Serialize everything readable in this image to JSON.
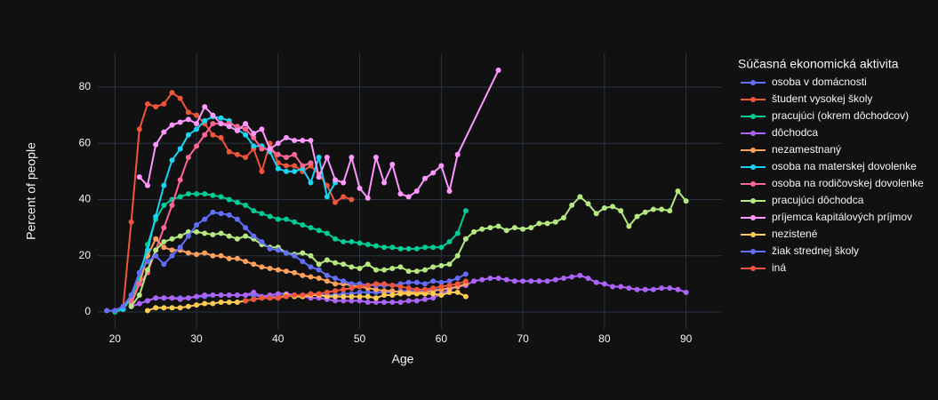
{
  "chart_data": {
    "type": "line",
    "x_label": "Age",
    "y_label": "Percent of people",
    "legend_title": "Súčasná ekonomická aktivita",
    "xlim": [
      17.9,
      94.4
    ],
    "ylim": [
      -6,
      92
    ],
    "xticks": [
      20,
      30,
      40,
      50,
      60,
      70,
      80,
      90
    ],
    "yticks": [
      0,
      20,
      40,
      60,
      80
    ],
    "grid": true,
    "legend_position": "right",
    "series": [
      {
        "name": "osoba v domácnosti",
        "color": "#636efa",
        "x": [
          22,
          23,
          24,
          25,
          26,
          27,
          28,
          29,
          30,
          31,
          32,
          33,
          34,
          35,
          36,
          37,
          38,
          39,
          40,
          41,
          42,
          43,
          44,
          45,
          46,
          47,
          48,
          49,
          50,
          51,
          52,
          53,
          54,
          55,
          56,
          57,
          58,
          59,
          60,
          61,
          62,
          63
        ],
        "values": [
          2,
          3,
          4,
          5,
          5,
          5,
          5,
          5,
          5.5,
          5.5,
          6,
          6,
          6,
          6,
          6,
          6,
          5.5,
          5.5,
          5.5,
          5.5,
          6,
          6,
          6,
          6,
          6,
          6,
          6.5,
          6.5,
          7,
          7,
          7,
          7,
          7,
          7.5,
          7.5,
          7.5,
          7.5,
          8,
          8,
          8.5,
          9,
          9.5
        ]
      },
      {
        "name": "študent vysokej školy",
        "color": "#EF553B",
        "x": [
          19,
          20,
          21,
          22,
          23,
          24,
          25,
          26,
          27,
          28,
          29,
          30,
          31,
          32,
          33,
          34,
          35,
          36,
          37,
          38,
          39,
          40,
          41,
          42,
          43,
          44,
          45,
          46,
          47,
          48,
          49
        ],
        "values": [
          0.5,
          0.5,
          1.5,
          32,
          65,
          74,
          73,
          74,
          78,
          76,
          71,
          70,
          67,
          63,
          62,
          57,
          56,
          55,
          58,
          50,
          60,
          53,
          52,
          52,
          50,
          52,
          49,
          45,
          39,
          41,
          40
        ]
      },
      {
        "name": "pracujúci (okrem dôchodcov)",
        "color": "#00cc96",
        "x": [
          20,
          21,
          22,
          23,
          24,
          25,
          26,
          27,
          28,
          29,
          30,
          31,
          32,
          33,
          34,
          35,
          36,
          37,
          38,
          39,
          40,
          41,
          42,
          43,
          44,
          45,
          46,
          47,
          48,
          49,
          50,
          51,
          52,
          53,
          54,
          55,
          56,
          57,
          58,
          59,
          60,
          61,
          62,
          63
        ],
        "values": [
          0,
          1,
          5,
          12,
          24,
          33,
          38,
          40,
          41,
          42,
          42,
          42,
          41.5,
          41,
          40,
          39,
          38,
          36,
          35,
          34,
          33,
          33,
          32,
          31,
          30,
          29,
          28,
          26,
          25,
          25,
          24.5,
          24,
          23.5,
          23,
          23,
          22.5,
          22.5,
          22.5,
          23,
          23,
          23,
          25,
          28,
          36
        ]
      },
      {
        "name": "dôchodca",
        "color": "#ab63fa",
        "x": [
          22,
          23,
          24,
          25,
          26,
          27,
          28,
          29,
          30,
          31,
          32,
          33,
          34,
          35,
          36,
          37,
          38,
          39,
          40,
          41,
          42,
          43,
          44,
          45,
          46,
          47,
          48,
          49,
          50,
          51,
          52,
          53,
          54,
          55,
          56,
          57,
          58,
          59,
          60,
          61,
          62,
          63,
          64,
          65,
          66,
          67,
          68,
          69,
          70,
          71,
          72,
          73,
          74,
          75,
          76,
          77,
          78,
          79,
          80,
          81,
          82,
          83,
          84,
          85,
          86,
          87,
          88,
          89,
          90
        ],
        "values": [
          2,
          3,
          4,
          5,
          5,
          5,
          4.5,
          5,
          5.5,
          6,
          6,
          6,
          6,
          6,
          6,
          7,
          5.5,
          6,
          6.5,
          6.5,
          6,
          5.5,
          5,
          5,
          4.5,
          4,
          4,
          4,
          4,
          3.5,
          3.5,
          3.5,
          3.5,
          3.5,
          4,
          4,
          4.5,
          5,
          6.5,
          8,
          9,
          9.5,
          11,
          11.5,
          12,
          12,
          11.5,
          11,
          11,
          11,
          11,
          11,
          11.5,
          12,
          12.5,
          13,
          12,
          10.5,
          10,
          9,
          9,
          8.5,
          8,
          8,
          8,
          8.5,
          8.5,
          8,
          7
        ]
      },
      {
        "name": "nezamestnaný",
        "color": "#FFA15A",
        "x": [
          22,
          23,
          24,
          25,
          26,
          27,
          28,
          29,
          30,
          31,
          32,
          33,
          34,
          35,
          36,
          37,
          38,
          39,
          40,
          41,
          42,
          43,
          44,
          45,
          46,
          47,
          48,
          49,
          50,
          51,
          52,
          53,
          54,
          55,
          56,
          57,
          58,
          59,
          60,
          61,
          62,
          63
        ],
        "values": [
          3,
          10,
          20,
          26,
          23,
          22,
          22,
          21,
          20.5,
          21,
          20,
          20,
          19,
          19,
          18,
          17,
          16,
          15.5,
          15,
          14.5,
          14,
          13,
          12.5,
          12,
          11,
          10,
          10,
          9.5,
          9,
          8.5,
          8,
          7.5,
          7.5,
          7,
          7,
          7,
          7,
          7.5,
          8,
          8.5,
          9,
          10
        ]
      },
      {
        "name": "osoba na materskej dovolenke",
        "color": "#19d3f3",
        "x": [
          21,
          22,
          23,
          24,
          25,
          26,
          27,
          28,
          29,
          30,
          31,
          32,
          33,
          34,
          35,
          36,
          37,
          38,
          39,
          40,
          41,
          42,
          43,
          44,
          45,
          46,
          47
        ],
        "values": [
          1,
          6,
          14,
          22,
          34,
          45,
          54,
          58,
          63,
          65,
          68,
          69.5,
          69,
          68,
          65,
          63,
          59,
          59,
          57,
          51,
          50,
          50,
          51,
          46,
          55,
          41,
          46
        ]
      },
      {
        "name": "osoba na rodičovskej dovolenke",
        "color": "#FF6692",
        "x": [
          22,
          23,
          24,
          25,
          26,
          27,
          28,
          29,
          30,
          31,
          32,
          33,
          34,
          35,
          36,
          37,
          38,
          39,
          40,
          41,
          42,
          43,
          44
        ],
        "values": [
          4,
          10,
          14,
          22,
          30,
          38,
          47,
          55,
          59,
          63,
          67,
          67,
          67,
          66,
          65,
          62,
          58,
          58,
          56,
          55,
          56,
          52,
          53
        ]
      },
      {
        "name": "pracujúci dôchodca",
        "color": "#B6E880",
        "x": [
          22,
          23,
          24,
          25,
          26,
          27,
          28,
          29,
          30,
          31,
          32,
          33,
          34,
          35,
          36,
          37,
          38,
          39,
          40,
          41,
          42,
          43,
          44,
          45,
          46,
          47,
          48,
          49,
          50,
          51,
          52,
          53,
          54,
          55,
          56,
          57,
          58,
          59,
          60,
          61,
          62,
          63,
          64,
          65,
          66,
          67,
          68,
          69,
          70,
          71,
          72,
          73,
          74,
          75,
          76,
          77,
          78,
          79,
          80,
          81,
          82,
          83,
          84,
          85,
          86,
          87,
          88,
          89,
          90
        ],
        "values": [
          2,
          6,
          15,
          22,
          25,
          26,
          27,
          28.5,
          28.5,
          28,
          27.5,
          28,
          27,
          26,
          27,
          26,
          24,
          23,
          23,
          21,
          20.5,
          21,
          20,
          17,
          18.5,
          17.5,
          17,
          16,
          15.5,
          17,
          15,
          15,
          15.5,
          16,
          14.5,
          14.5,
          15,
          16,
          16.5,
          17,
          20,
          26,
          28.5,
          29.5,
          30,
          30.5,
          29,
          30,
          29.5,
          30,
          31.5,
          31.5,
          32,
          33.5,
          38,
          41,
          38.5,
          35,
          37,
          37.5,
          36,
          30.5,
          34,
          35.5,
          36.5,
          36.5,
          36,
          43,
          39.5
        ]
      },
      {
        "name": "príjemca kapitálových príjmov",
        "color": "#FF97FF",
        "x": [
          23,
          24,
          25,
          26,
          27,
          28,
          29,
          30,
          31,
          32,
          33,
          34,
          35,
          36,
          37,
          38,
          39,
          40,
          41,
          42,
          43,
          44,
          45,
          46,
          47,
          48,
          49,
          50,
          51,
          52,
          53,
          54,
          55,
          56,
          57,
          58,
          59,
          60,
          61,
          62,
          67
        ],
        "values": [
          48,
          45,
          59.5,
          64,
          66.5,
          67.5,
          68.5,
          67,
          73,
          70,
          67,
          66,
          64.5,
          67,
          63.5,
          65,
          58,
          60,
          62,
          61,
          61,
          61,
          48,
          55,
          47,
          46,
          55,
          44,
          40.5,
          55,
          46,
          52.5,
          42,
          41,
          43,
          47.5,
          49.5,
          52,
          43,
          56,
          86
        ]
      },
      {
        "name": "nezistené",
        "color": "#FECB52",
        "x": [
          24,
          25,
          26,
          27,
          28,
          29,
          30,
          31,
          32,
          33,
          34,
          35,
          36,
          37,
          38,
          39,
          40,
          41,
          42,
          43,
          44,
          45,
          46,
          47,
          48,
          49,
          50,
          51,
          52,
          53,
          54,
          55,
          56,
          57,
          58,
          59,
          60,
          61,
          62,
          63
        ],
        "values": [
          0.5,
          1.5,
          1.5,
          1.5,
          1.5,
          2,
          2.5,
          3,
          3,
          3.5,
          3.5,
          3.5,
          4,
          4.5,
          5,
          5,
          5,
          6,
          5.5,
          5.5,
          6,
          6,
          5.5,
          5.5,
          5.5,
          5.5,
          5.5,
          5.5,
          5,
          6,
          6,
          6.5,
          6.5,
          6.5,
          6.5,
          6.5,
          6,
          7,
          7,
          5.5
        ]
      },
      {
        "name": "žiak strednej školy",
        "color": "#636efa",
        "x": [
          19,
          20,
          21,
          22,
          23,
          24,
          25,
          26,
          27,
          28,
          29,
          30,
          31,
          32,
          33,
          34,
          35,
          36,
          37,
          38,
          39,
          40,
          41,
          42,
          43,
          44,
          45,
          46,
          47,
          48,
          49,
          50,
          51,
          52,
          53,
          54,
          55,
          56,
          57,
          58,
          59,
          60,
          61,
          62,
          63
        ],
        "values": [
          0.5,
          0.5,
          2,
          6,
          14,
          18,
          20,
          17,
          20,
          23,
          27,
          31,
          33,
          35.5,
          35,
          34.5,
          33,
          30,
          27,
          25,
          22.5,
          22,
          21,
          20,
          18,
          16,
          15,
          13,
          12,
          11,
          10,
          10,
          9.5,
          9.5,
          9.5,
          9.5,
          10,
          10.5,
          10.5,
          10,
          11,
          10.5,
          11,
          12,
          13.5
        ]
      },
      {
        "name": "iná",
        "color": "#EF553B",
        "x": [
          36,
          37,
          38,
          39,
          40,
          41,
          42,
          43,
          44,
          45,
          46,
          47,
          48,
          49,
          50,
          51,
          52,
          53,
          54,
          55,
          56,
          57,
          58,
          59,
          60,
          61,
          62,
          63
        ],
        "values": [
          4,
          4.5,
          5,
          5,
          5,
          5.5,
          6,
          6,
          6.5,
          6.5,
          7,
          7.5,
          8,
          8.5,
          9,
          9.5,
          10,
          10,
          9.5,
          9,
          8.5,
          8,
          8,
          8.5,
          9,
          9.5,
          10,
          11
        ]
      }
    ]
  }
}
